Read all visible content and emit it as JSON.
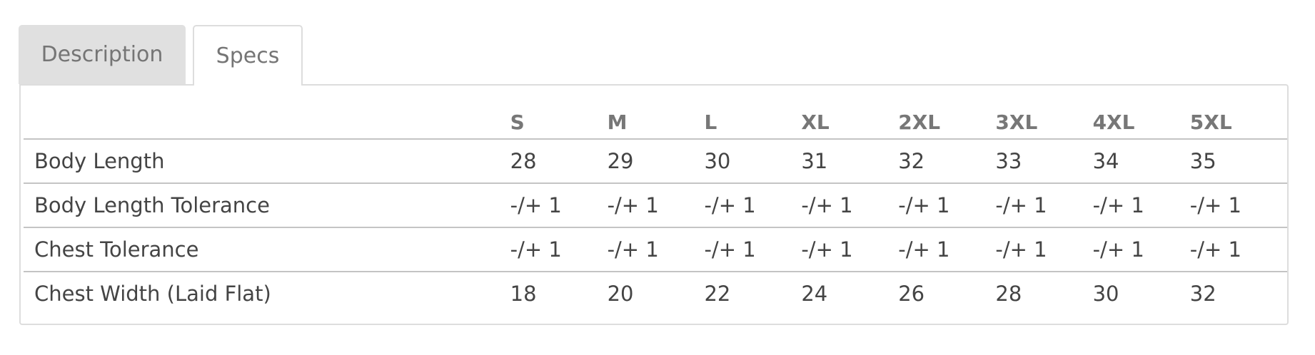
{
  "tabs": [
    {
      "label": "Description",
      "active": false
    },
    {
      "label": "Specs",
      "active": true
    }
  ],
  "specs": {
    "sizes": [
      "S",
      "M",
      "L",
      "XL",
      "2XL",
      "3XL",
      "4XL",
      "5XL"
    ],
    "rows": [
      {
        "label": "Body Length",
        "values": [
          "28",
          "29",
          "30",
          "31",
          "32",
          "33",
          "34",
          "35"
        ]
      },
      {
        "label": "Body Length Tolerance",
        "values": [
          "-/+ 1",
          "-/+ 1",
          "-/+ 1",
          "-/+ 1",
          "-/+ 1",
          "-/+ 1",
          "-/+ 1",
          "-/+ 1"
        ]
      },
      {
        "label": "Chest Tolerance",
        "values": [
          "-/+ 1",
          "-/+ 1",
          "-/+ 1",
          "-/+ 1",
          "-/+ 1",
          "-/+ 1",
          "-/+ 1",
          "-/+ 1"
        ]
      },
      {
        "label": "Chest Width (Laid Flat)",
        "values": [
          "18",
          "20",
          "22",
          "24",
          "26",
          "28",
          "30",
          "32"
        ]
      }
    ]
  }
}
